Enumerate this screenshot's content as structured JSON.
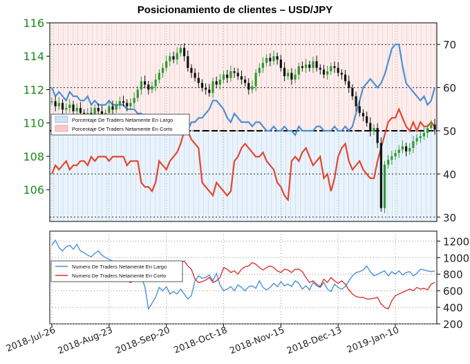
{
  "chart_data": [
    {
      "type": "line",
      "title": "Posicionamiento de clientes – USD/JPY",
      "left_axis": {
        "ticks": [
          106,
          108,
          110,
          112,
          114,
          116
        ],
        "range": [
          104.1,
          116.0
        ],
        "color": "#1a8a1a"
      },
      "right_axis": {
        "ticks": [
          30,
          40,
          50,
          60,
          70
        ],
        "range": [
          29,
          75
        ]
      },
      "x_labels": [
        "2018-Jul-26",
        "2018-Aug-23",
        "2018-Sep-20",
        "2018-Oct-18",
        "2018-Nov-15",
        "2018-Dec-13",
        "2019-Jan-10"
      ],
      "legend": {
        "position": "left",
        "entries": [
          "Porcentaje De Traders Netamente En Largo",
          "Porcentaje De Traders Netamente En Corto"
        ]
      },
      "reference_line": 50,
      "price": {
        "name": "USD/JPY",
        "values": [
          111.3,
          111.0,
          111.2,
          110.8,
          110.9,
          111.1,
          110.7,
          110.9,
          110.6,
          110.3,
          110.6,
          110.5,
          110.9,
          110.7,
          110.4,
          110.6,
          111.0,
          110.8,
          111.1,
          111.3,
          111.2,
          111.0,
          111.2,
          111.5,
          112.0,
          112.5,
          112.3,
          112.0,
          112.2,
          112.6,
          113.0,
          113.3,
          113.7,
          114.0,
          113.8,
          114.2,
          114.5,
          114.0,
          113.3,
          113.0,
          112.7,
          112.4,
          112.1,
          112.0,
          111.8,
          112.5,
          112.3,
          112.6,
          112.9,
          112.7,
          113.1,
          113.0,
          112.8,
          112.6,
          112.4,
          112.0,
          112.2,
          113.0,
          113.3,
          113.6,
          113.9,
          113.7,
          114.0,
          113.8,
          113.3,
          112.8,
          113.0,
          112.6,
          112.9,
          113.4,
          113.3,
          113.5,
          113.3,
          113.7,
          113.3,
          113.2,
          112.9,
          113.1,
          113.4,
          113.3,
          113.0,
          112.9,
          112.5,
          112.1,
          111.6,
          111.0,
          110.6,
          110.4,
          110.0,
          109.5,
          109.7,
          108.8,
          104.9,
          107.5,
          107.8,
          108.0,
          108.2,
          108.4,
          108.6,
          108.3,
          108.5,
          108.9,
          109.1,
          109.2,
          109.4,
          109.7,
          109.9,
          109.6
        ]
      },
      "long_pct": {
        "name": "Porcentaje De Traders Netamente En Largo",
        "values": [
          60,
          58,
          59,
          58,
          57,
          59,
          58,
          58,
          57,
          57,
          58,
          56,
          57,
          56,
          56,
          56,
          57,
          56,
          56,
          56,
          56,
          55,
          55,
          55,
          54,
          54,
          53,
          52,
          52,
          51,
          51,
          51,
          51,
          52,
          51,
          51,
          50,
          50,
          50,
          52,
          52,
          53,
          53,
          54,
          55,
          57,
          57,
          56,
          55,
          53,
          52,
          54,
          53,
          52,
          52,
          52,
          51,
          52,
          52,
          51,
          50,
          50,
          51,
          50,
          50,
          51,
          50,
          50,
          49,
          51,
          50,
          50,
          50,
          50,
          51,
          51,
          50,
          50,
          50,
          51,
          50,
          50,
          51,
          50,
          51,
          54,
          57,
          60,
          61,
          62,
          61,
          60,
          61,
          63,
          66,
          69,
          70,
          70,
          65,
          61,
          60,
          59,
          58,
          57,
          58,
          56,
          57,
          60
        ]
      },
      "short_pct": {
        "name": "Porcentaje De Traders Netamente En Corto",
        "values": [
          40,
          42,
          41,
          42,
          43,
          41,
          42,
          42,
          43,
          43,
          42,
          44,
          43,
          44,
          44,
          44,
          43,
          44,
          44,
          44,
          44,
          42,
          43,
          43,
          43,
          38,
          37,
          37,
          36,
          38,
          43,
          42,
          41,
          43,
          44,
          45,
          47,
          50,
          50,
          48,
          47,
          46,
          38,
          37,
          36,
          35,
          38,
          37,
          36,
          35,
          36,
          43,
          44,
          46,
          47,
          46,
          45,
          44,
          44,
          45,
          43,
          42,
          41,
          38,
          37,
          35,
          34,
          43,
          44,
          43,
          45,
          46,
          44,
          42,
          43,
          44,
          39,
          40,
          36,
          39,
          44,
          46,
          47,
          43,
          41,
          42,
          43,
          41,
          40,
          39,
          39,
          43,
          46,
          49,
          52,
          53,
          53,
          55,
          53,
          51,
          50,
          52,
          50,
          52,
          51,
          51,
          52,
          51
        ]
      }
    },
    {
      "type": "line",
      "right_axis": {
        "ticks": [
          200,
          400,
          600,
          800,
          1000,
          1200
        ],
        "range": [
          200,
          1320
        ]
      },
      "legend": {
        "position": "left",
        "entries": [
          "Numero De Traders Netamente En Largo",
          "Numero De Traders Netamente En Corto"
        ]
      },
      "series": [
        {
          "name": "Numero De Traders Netamente En Largo",
          "color": "#4a90d9",
          "values": [
            1150,
            1210,
            1120,
            1080,
            1130,
            1150,
            1100,
            1160,
            1080,
            1060,
            1030,
            1010,
            1050,
            1080,
            1030,
            1000,
            980,
            960,
            950,
            920,
            900,
            880,
            850,
            830,
            820,
            760,
            650,
            380,
            450,
            520,
            640,
            600,
            650,
            560,
            590,
            560,
            620,
            560,
            500,
            540,
            720,
            780,
            750,
            760,
            790,
            720,
            810,
            670,
            600,
            620,
            650,
            600,
            670,
            640,
            600,
            650,
            660,
            630,
            720,
            640,
            610,
            640,
            690,
            650,
            710,
            660,
            680,
            650,
            720,
            690,
            620,
            660,
            610,
            700,
            660,
            640,
            700,
            620,
            590,
            680,
            640,
            620,
            650,
            720,
            780,
            820,
            830,
            850,
            900,
            830,
            780,
            800,
            820,
            840,
            780,
            830,
            800,
            840,
            790,
            820,
            830,
            780,
            810,
            860,
            850,
            840,
            830,
            840
          ]
        },
        {
          "name": "Numero De Traders Netamente En Corto",
          "color": "#d93535",
          "values": [
            860,
            800,
            820,
            840,
            850,
            830,
            810,
            790,
            800,
            830,
            820,
            760,
            780,
            790,
            800,
            780,
            790,
            770,
            760,
            740,
            730,
            720,
            700,
            720,
            730,
            760,
            820,
            900,
            880,
            850,
            860,
            900,
            930,
            940,
            920,
            950,
            930,
            960,
            900,
            860,
            740,
            700,
            710,
            730,
            760,
            700,
            720,
            760,
            880,
            860,
            820,
            840,
            800,
            860,
            890,
            900,
            940,
            920,
            880,
            850,
            880,
            900,
            880,
            840,
            820,
            860,
            850,
            820,
            860,
            860,
            830,
            760,
            700,
            720,
            680,
            650,
            740,
            700,
            760,
            720,
            690,
            720,
            680,
            610,
            560,
            530,
            520,
            520,
            500,
            500,
            510,
            520,
            440,
            400,
            380,
            480,
            540,
            560,
            580,
            600,
            620,
            600,
            640,
            620,
            630,
            610,
            680,
            700
          ]
        }
      ]
    }
  ]
}
